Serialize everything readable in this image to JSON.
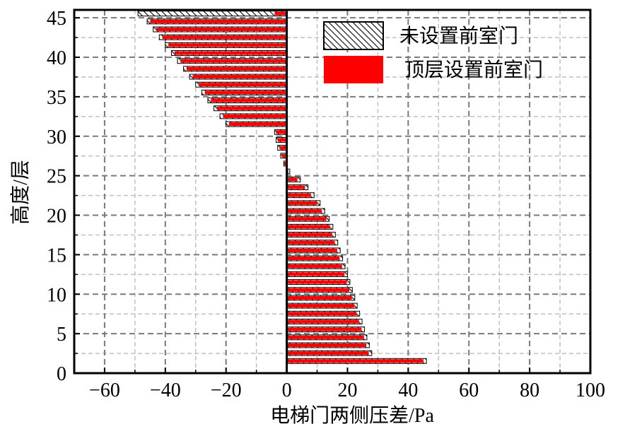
{
  "chart_data": {
    "type": "bar",
    "orientation": "horizontal",
    "xlabel": "电梯门两侧压差/Pa",
    "ylabel": "高度/层",
    "xlim": [
      -70,
      100
    ],
    "ylim": [
      0,
      46
    ],
    "x_ticks": [
      -60,
      -40,
      -20,
      0,
      20,
      40,
      60,
      80,
      100
    ],
    "y_ticks": [
      0,
      5,
      10,
      15,
      20,
      25,
      30,
      35,
      40,
      45
    ],
    "grid": true,
    "legend_position": "top-right",
    "floors": [
      1,
      2,
      3,
      4,
      5,
      6,
      7,
      8,
      9,
      10,
      11,
      12,
      13,
      14,
      15,
      16,
      17,
      18,
      19,
      20,
      21,
      22,
      23,
      24,
      25,
      26,
      27,
      28,
      29,
      30,
      31,
      32,
      33,
      34,
      35,
      36,
      37,
      38,
      39,
      40,
      41,
      42,
      43,
      44,
      45
    ],
    "series": [
      {
        "name": "未设置前室门",
        "pattern": "hatch",
        "color": "#000000",
        "values": [
          46,
          28,
          27.2,
          26.4,
          25.6,
          24.8,
          24,
          23.2,
          22.4,
          21.6,
          20.8,
          20,
          19.2,
          18.4,
          17.6,
          16.8,
          16,
          15.2,
          14,
          12.5,
          11,
          9,
          7,
          4.5,
          1,
          -1,
          -2,
          -3,
          -3.5,
          -4,
          -20,
          -22,
          -24,
          -26,
          -28,
          -30,
          -32,
          -34,
          -36,
          -38,
          -40,
          -42,
          -44,
          -46,
          -49
        ]
      },
      {
        "name": "顶层设置前室门",
        "pattern": "solid",
        "color": "#ff0000",
        "values": [
          45,
          27,
          26.2,
          25.4,
          24.6,
          23.8,
          23,
          22.2,
          21.4,
          20.6,
          19.8,
          19,
          18.2,
          17.4,
          16.6,
          15.8,
          15,
          14.2,
          13,
          11.5,
          10,
          8,
          6,
          3.5,
          0.5,
          -0.8,
          -1.6,
          -2.4,
          -3,
          -3.5,
          -19,
          -21,
          -23,
          -25,
          -27,
          -29,
          -31,
          -33,
          -35,
          -37,
          -39,
          -41,
          -43,
          -45,
          -4
        ]
      }
    ]
  }
}
